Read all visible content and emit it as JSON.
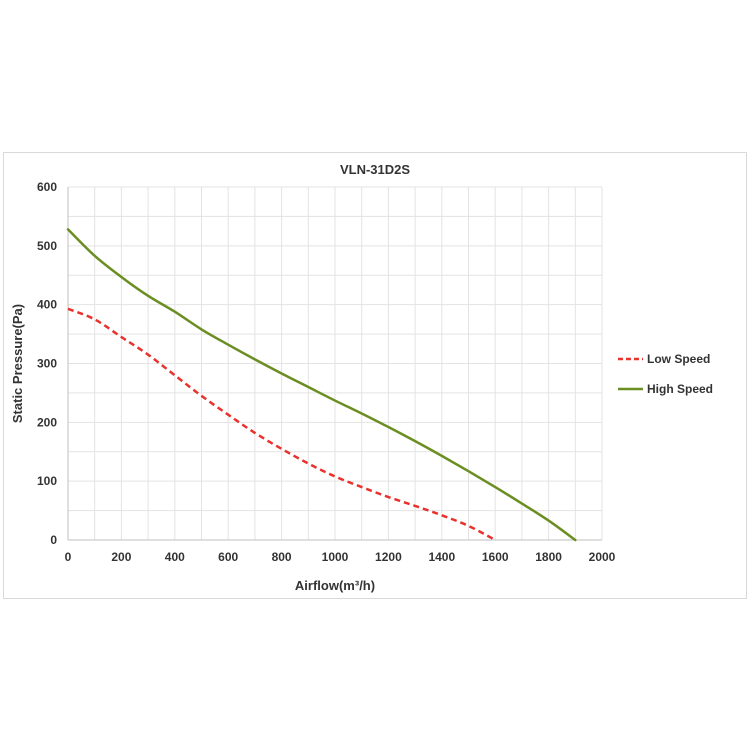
{
  "chart_data": {
    "type": "line",
    "title": "VLN-31D2S",
    "xlabel": "Airflow(m³/h)",
    "ylabel": "Static Pressure(Pa)",
    "xlim": [
      0,
      2000
    ],
    "ylim": [
      0,
      600
    ],
    "xticks": [
      0,
      200,
      400,
      600,
      800,
      1000,
      1200,
      1400,
      1600,
      1800,
      2000
    ],
    "yticks": [
      0,
      100,
      200,
      300,
      400,
      500,
      600
    ],
    "grid": true,
    "legend_position": "right",
    "series": [
      {
        "name": "Low Speed",
        "color": "#e8322d",
        "line_style": "dashed",
        "x": [
          0,
          100,
          200,
          300,
          400,
          500,
          600,
          700,
          800,
          900,
          1000,
          1100,
          1200,
          1300,
          1400,
          1500,
          1600
        ],
        "y": [
          393,
          375,
          345,
          315,
          280,
          245,
          213,
          182,
          155,
          130,
          108,
          90,
          73,
          58,
          42,
          24,
          0
        ]
      },
      {
        "name": "High Speed",
        "color": "#6b8e23",
        "line_style": "solid",
        "x": [
          0,
          100,
          200,
          300,
          400,
          500,
          600,
          700,
          800,
          900,
          1000,
          1100,
          1200,
          1300,
          1400,
          1500,
          1600,
          1700,
          1800,
          1900
        ],
        "y": [
          528,
          483,
          447,
          415,
          388,
          358,
          332,
          307,
          283,
          260,
          237,
          215,
          192,
          168,
          143,
          117,
          90,
          62,
          33,
          0
        ]
      }
    ]
  }
}
